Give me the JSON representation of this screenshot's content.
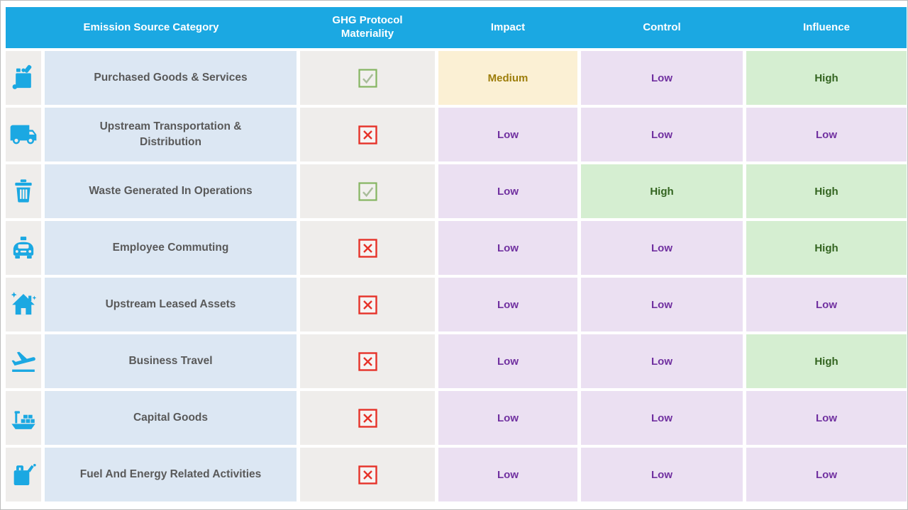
{
  "header": {
    "columns": [
      "Emission Source Category",
      "GHG Protocol Materiality",
      "Impact",
      "Control",
      "Influence"
    ]
  },
  "rows": [
    {
      "icon": "shopping-bag-icon",
      "category": "Purchased Goods & Services",
      "materiality": "checked",
      "impact": "Medium",
      "control": "Low",
      "influence": "High"
    },
    {
      "icon": "truck-icon",
      "category": "Upstream Transportation & Distribution",
      "materiality": "crossed",
      "impact": "Low",
      "control": "Low",
      "influence": "Low"
    },
    {
      "icon": "trash-can-icon",
      "category": "Waste Generated In Operations",
      "materiality": "checked",
      "impact": "Low",
      "control": "High",
      "influence": "High"
    },
    {
      "icon": "taxi-icon",
      "category": "Employee Commuting",
      "materiality": "crossed",
      "impact": "Low",
      "control": "Low",
      "influence": "High"
    },
    {
      "icon": "house-icon",
      "category": "Upstream Leased Assets",
      "materiality": "crossed",
      "impact": "Low",
      "control": "Low",
      "influence": "Low"
    },
    {
      "icon": "airplane-takeoff-icon",
      "category": "Business Travel",
      "materiality": "crossed",
      "impact": "Low",
      "control": "Low",
      "influence": "High"
    },
    {
      "icon": "cargo-ship-icon",
      "category": "Capital Goods",
      "materiality": "crossed",
      "impact": "Low",
      "control": "Low",
      "influence": "Low"
    },
    {
      "icon": "fuel-can-icon",
      "category": "Fuel And Energy Related Activities",
      "materiality": "crossed",
      "impact": "Low",
      "control": "Low",
      "influence": "Low"
    }
  ],
  "colors": {
    "accent": "#1BA8E2",
    "category_cell_bg": "#DCE7F3",
    "neutral_cell_bg": "#EFEDEB",
    "category_text": "#595959",
    "low_bg": "#EBE0F2",
    "low_text": "#7030A0",
    "medium_bg": "#FBF0D4",
    "medium_text": "#9D7D0A",
    "high_bg": "#D5EED1",
    "high_text": "#336420",
    "checkbox_check": "#85B561",
    "checkbox_cross": "#E63229"
  }
}
